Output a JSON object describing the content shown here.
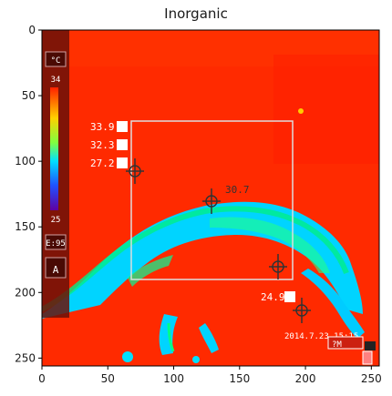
{
  "figure": {
    "title": "Inorganic"
  },
  "axes": {
    "x_ticks": [
      "0",
      "50",
      "100",
      "150",
      "200",
      "250"
    ],
    "y_ticks": [
      "0",
      "50",
      "100",
      "150",
      "200",
      "250"
    ],
    "x_range": [
      0,
      256
    ],
    "y_range": [
      0,
      256
    ]
  },
  "thermal_overlay": {
    "unit_label": "°C",
    "scale_max": "34",
    "scale_min": "25",
    "mode_label": "A",
    "secondary_label": "E:95",
    "readings": {
      "max": "33.9",
      "mean": "32.3",
      "min": "27.2"
    },
    "spot_value": "30.7",
    "lower_value": "24.9",
    "timestamp": "2014.7.23 15:15",
    "extra_label": "?M"
  },
  "colors": {
    "background_hot": "#ff2a00",
    "cool_blue": "#00c8ff",
    "green": "#00ee88",
    "dark_panel": "#6a1008",
    "axis": "#000000"
  }
}
